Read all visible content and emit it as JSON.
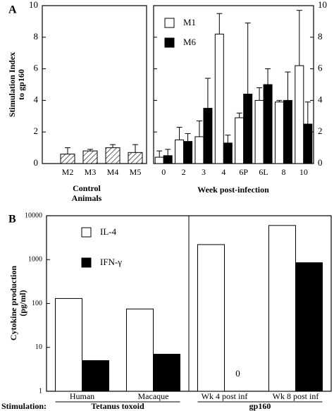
{
  "chart_data": [
    {
      "type": "bar",
      "panel": "A",
      "ylabel": [
        "Stimulation Index",
        "to gp160"
      ],
      "xlabel": [
        "Control",
        "Animals"
      ],
      "categories": [
        "M2",
        "M3",
        "M4",
        "M5"
      ],
      "values": [
        0.6,
        0.8,
        1.0,
        0.7
      ],
      "errors": [
        0.4,
        0.1,
        0.2,
        0.5
      ],
      "color": "#ffffff",
      "hatch": true,
      "ylim": [
        0,
        10
      ],
      "yticks": [
        0,
        2,
        4,
        6,
        8,
        10
      ],
      "yaxis_side": "left"
    },
    {
      "type": "bar",
      "xlabel": [
        "Week post-infection"
      ],
      "categories": [
        "0",
        "2",
        "3",
        "4",
        "6P",
        "6L",
        "8",
        "10"
      ],
      "series": [
        {
          "name": "M1",
          "color": "#ffffff",
          "values": [
            0.4,
            1.5,
            1.7,
            8.2,
            2.9,
            4.0,
            3.9,
            6.2
          ],
          "errors": [
            0.4,
            0.8,
            1.0,
            1.3,
            0.3,
            0.8,
            0.1,
            3.5
          ]
        },
        {
          "name": "M6",
          "color": "#000000",
          "values": [
            0.5,
            1.4,
            3.5,
            1.3,
            4.4,
            5.0,
            4.0,
            2.5
          ],
          "errors": [
            0.4,
            0.5,
            1.9,
            0.5,
            4.5,
            1.0,
            1.8,
            1.4
          ]
        }
      ],
      "ylim": [
        0,
        10
      ],
      "yticks": [
        0,
        2,
        4,
        6,
        8,
        10
      ],
      "yaxis_side": "right",
      "legend": "upper left"
    },
    {
      "type": "bar",
      "panel": "B",
      "ylabel": [
        "Cytokine production",
        "(pg/ml)"
      ],
      "log_scale": true,
      "categories": [
        "Human",
        "Macaque",
        "Wk 4 post inf",
        "Wk 8 post inf"
      ],
      "series": [
        {
          "name": "IL-4",
          "color": "#ffffff",
          "values": [
            130,
            75,
            2200,
            6000
          ]
        },
        {
          "name": "IFN-γ",
          "color": "#000000",
          "values": [
            5,
            7,
            0,
            850
          ]
        }
      ],
      "ylim": [
        1,
        10000
      ],
      "yticks": [
        1,
        10,
        100,
        1000,
        10000
      ],
      "yaxis_side": "left",
      "legend": "upper left",
      "stimulation_label": "Stimulation:",
      "groups": [
        "Tetanus toxoid",
        "gp160"
      ]
    }
  ]
}
